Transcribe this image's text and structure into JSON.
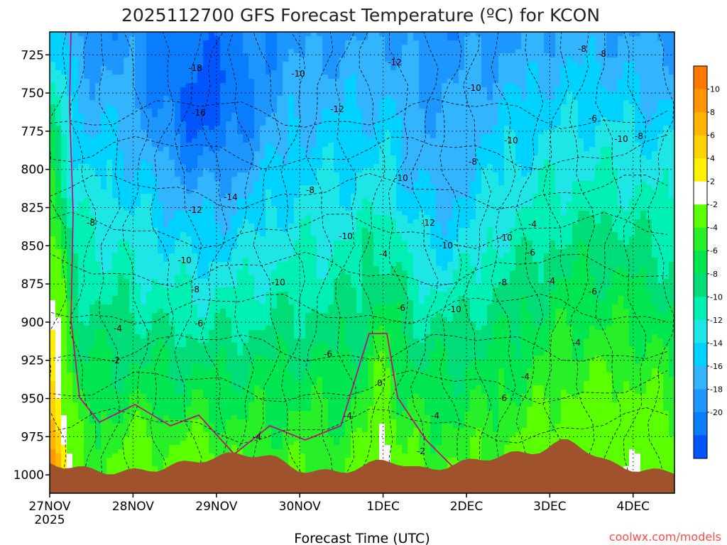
{
  "chart_data": {
    "type": "heatmap",
    "title": "2025112700 GFS Forecast Temperature (ºC) for KCON",
    "xlabel": "Forecast Time (UTC)",
    "x_ticks": [
      "27NOV",
      "28NOV",
      "29NOV",
      "30NOV",
      "1DEC",
      "2DEC",
      "3DEC",
      "4DEC"
    ],
    "x_year_label": "2025",
    "y_ticks": [
      725,
      750,
      775,
      800,
      825,
      850,
      875,
      900,
      925,
      950,
      975,
      1000
    ],
    "ylim": [
      1012,
      710
    ],
    "grid": true,
    "colorbar": {
      "placement": "right",
      "levels": [
        -22,
        -20,
        -18,
        -16,
        -14,
        -12,
        -10,
        -8,
        -6,
        -4,
        -2,
        2,
        4,
        6,
        8,
        10,
        12
      ],
      "colors": [
        "#0055ff",
        "#0a7dff",
        "#1e96ff",
        "#32b4ff",
        "#00d2ff",
        "#1ee6e6",
        "#00f0b4",
        "#00dc78",
        "#00e650",
        "#28f028",
        "#5aff00",
        "#ffffff",
        "#fff000",
        "#ffd200",
        "#ffb400",
        "#ff9600",
        "#ff7800"
      ],
      "tick_labels": [
        "10",
        "8",
        "6",
        "4",
        "2",
        "-2",
        "-4",
        "-6",
        "-8",
        "-10",
        "-12",
        "-14",
        "-16",
        "-18",
        "-20"
      ]
    },
    "contour_labels": [
      "-18",
      "-16",
      "-14",
      "-12",
      "-12",
      "-12",
      "-12",
      "-10",
      "-10",
      "-10",
      "-10",
      "-10",
      "-10",
      "-10",
      "-10",
      "-10",
      "-10",
      "-10",
      "-8",
      "-8",
      "-8",
      "-8",
      "-8",
      "-8",
      "-8",
      "-8",
      "-6",
      "-6",
      "-6",
      "-6",
      "-6",
      "-6",
      "-6",
      "-4",
      "-4",
      "-4",
      "-4",
      "-4",
      "-4",
      "-4",
      "-4",
      "-4",
      "-2",
      "-2",
      "0"
    ],
    "colors": {
      "terrain": "#a0522d",
      "freezing_line": "#c8007a",
      "title": "#222222",
      "credit": "#ff4a4a"
    }
  },
  "credit": "coolwx.com/models"
}
